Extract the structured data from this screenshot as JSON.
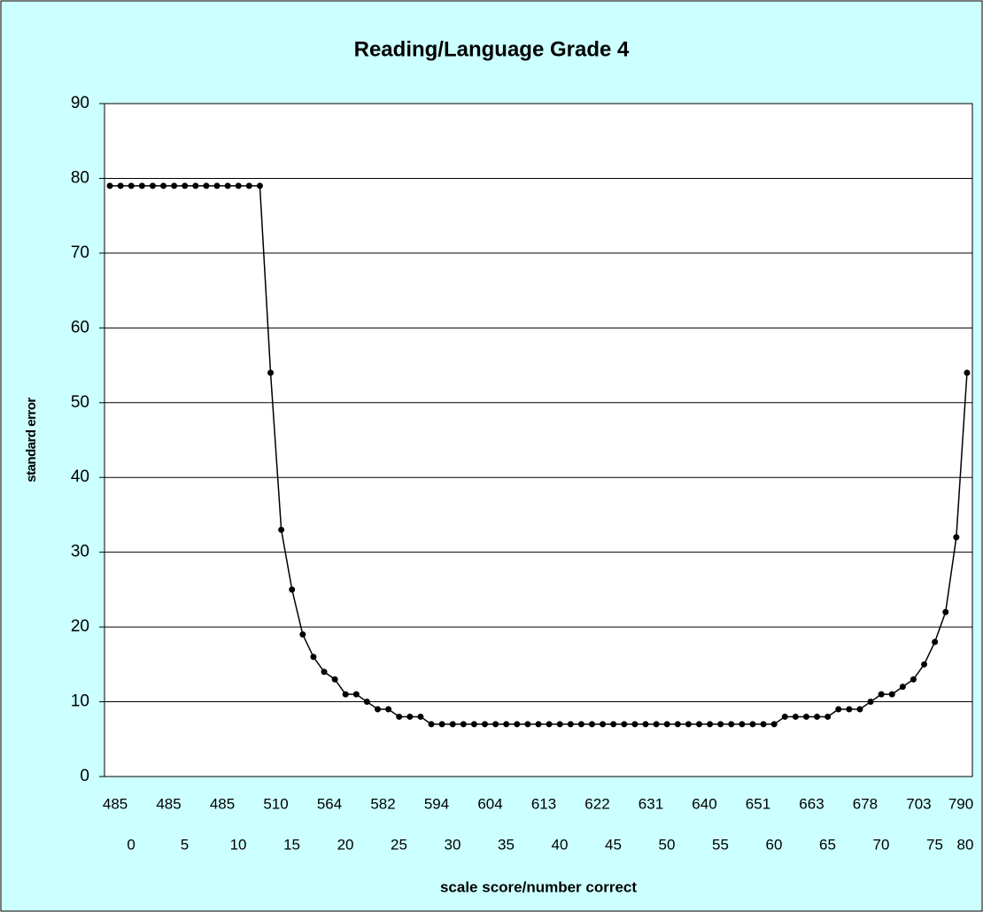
{
  "chart_data": {
    "type": "line",
    "title": "Reading/Language Grade 4",
    "y_label": "standard error",
    "x_label": "scale score/number correct",
    "categories": [
      0,
      null,
      null,
      null,
      null,
      5,
      null,
      null,
      null,
      null,
      10,
      null,
      null,
      null,
      null,
      15,
      null,
      null,
      null,
      null,
      20,
      null,
      null,
      null,
      null,
      25,
      null,
      null,
      null,
      null,
      30,
      null,
      null,
      null,
      null,
      35,
      null,
      null,
      null,
      null,
      40,
      null,
      null,
      null,
      null,
      45,
      null,
      null,
      null,
      null,
      50,
      null,
      null,
      null,
      null,
      55,
      null,
      null,
      null,
      null,
      60,
      null,
      null,
      null,
      null,
      65,
      null,
      null,
      null,
      null,
      70,
      null,
      null,
      null,
      null,
      75,
      null,
      null,
      null,
      null,
      80
    ],
    "category_scores": [
      485,
      null,
      null,
      null,
      null,
      485,
      null,
      null,
      null,
      null,
      485,
      null,
      null,
      null,
      null,
      510,
      null,
      null,
      null,
      null,
      564,
      null,
      null,
      null,
      null,
      582,
      null,
      null,
      null,
      null,
      594,
      null,
      null,
      null,
      null,
      604,
      null,
      null,
      null,
      null,
      613,
      null,
      null,
      null,
      null,
      622,
      null,
      null,
      null,
      null,
      631,
      null,
      null,
      null,
      null,
      640,
      null,
      null,
      null,
      null,
      651,
      null,
      null,
      null,
      null,
      663,
      null,
      null,
      null,
      null,
      678,
      null,
      null,
      null,
      null,
      703,
      null,
      null,
      null,
      null,
      790
    ],
    "values": [
      79,
      79,
      79,
      79,
      79,
      79,
      79,
      79,
      79,
      79,
      79,
      79,
      79,
      79,
      79,
      54,
      33,
      25,
      19,
      16,
      14,
      13,
      11,
      11,
      10,
      9,
      9,
      8,
      8,
      8,
      7,
      7,
      7,
      7,
      7,
      7,
      7,
      7,
      7,
      7,
      7,
      7,
      7,
      7,
      7,
      7,
      7,
      7,
      7,
      7,
      7,
      7,
      7,
      7,
      7,
      7,
      7,
      7,
      7,
      7,
      7,
      7,
      7,
      8,
      8,
      8,
      8,
      8,
      9,
      9,
      9,
      10,
      11,
      11,
      12,
      13,
      15,
      18,
      22,
      32,
      54
    ],
    "color": "#000000",
    "ylim": [
      0,
      90
    ],
    "yticks": [
      0,
      10,
      20,
      30,
      40,
      50,
      60,
      70,
      80,
      90
    ],
    "grid": true
  }
}
